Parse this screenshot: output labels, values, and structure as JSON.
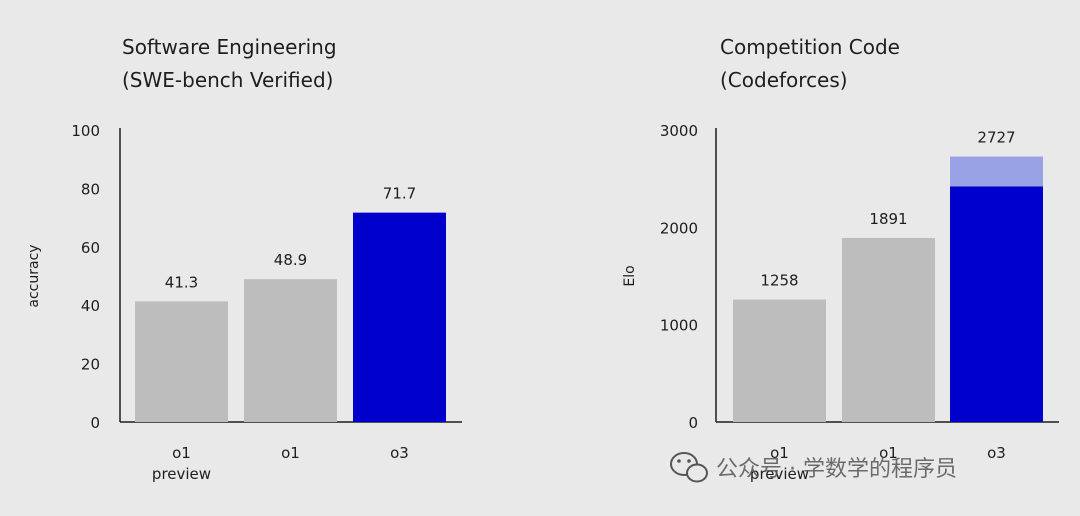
{
  "chart_data": [
    {
      "type": "bar",
      "title": "Software Engineering",
      "subtitle": "(SWE-bench Verified)",
      "xlabel": "",
      "ylabel": "accuracy",
      "ylim": [
        0,
        100
      ],
      "yticks": [
        0,
        20,
        40,
        60,
        80,
        100
      ],
      "categories": [
        [
          "o1",
          "preview"
        ],
        [
          "o1"
        ],
        [
          "o3"
        ]
      ],
      "values": [
        41.3,
        48.9,
        71.7
      ],
      "value_labels": [
        "41.3",
        "48.9",
        "71.7"
      ],
      "colors": [
        "#bdbdbd",
        "#bdbdbd",
        "#0000cc"
      ],
      "grid": false
    },
    {
      "type": "bar",
      "title": "Competition Code",
      "subtitle": "(Codeforces)",
      "xlabel": "",
      "ylabel": "Elo",
      "ylim": [
        0,
        3000
      ],
      "yticks": [
        0,
        1000,
        2000,
        3000
      ],
      "categories": [
        [
          "o1",
          "preview"
        ],
        [
          "o1"
        ],
        [
          "o3"
        ]
      ],
      "values": [
        1258,
        1891,
        2727
      ],
      "stacked_lower": [
        null,
        null,
        2420
      ],
      "value_labels": [
        "1258",
        "1891",
        "2727"
      ],
      "colors": [
        "#bdbdbd",
        "#bdbdbd",
        "#0000cc"
      ],
      "upper_color": "#9aa2e6",
      "grid": false
    }
  ],
  "watermark": {
    "text": "公众号 · 学数学的程序员",
    "icon": "wechat-icon"
  }
}
